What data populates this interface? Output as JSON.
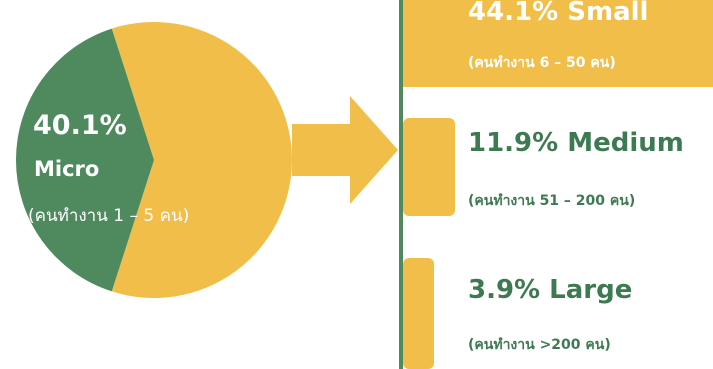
{
  "colors": {
    "micro": "#4f8a5f",
    "segments": "#f2be4a",
    "divider": "#4f8a5f",
    "text_light": "#ffffff",
    "text_dark": "#3d7a52"
  },
  "icons": {
    "arrow": "right-arrow-icon"
  },
  "chart_data": {
    "type": "pie",
    "title": "",
    "slices": [
      {
        "name": "Micro",
        "value": 40.1,
        "label": "40.1%",
        "sub": "(คนทำงาน 1 – 5 คน)"
      },
      {
        "name": "Small / Medium / Large",
        "value": 59.9
      }
    ],
    "breakdown": [
      {
        "pct": "44.1%",
        "name": "Small",
        "value": 44.1,
        "sub": "(คนทำงาน 6 – 50 คน)"
      },
      {
        "pct": "11.9%",
        "name": "Medium",
        "value": 11.9,
        "sub": "(คนทำงาน 51 – 200 คน)"
      },
      {
        "pct": "3.9%",
        "name": "Large",
        "value": 3.9,
        "sub": "(คนทำงาน >200 คน)"
      }
    ]
  },
  "labels": {
    "micro_pct": "40.1%",
    "micro_name": "Micro",
    "micro_sub": "(คนทำงาน 1 – 5 คน)",
    "small_title": "44.1% Small",
    "small_sub": "(คนทำงาน 6 – 50 คน)",
    "medium_title": "11.9% Medium",
    "medium_sub": "(คนทำงาน 51 – 200 คน)",
    "large_title": "3.9% Large",
    "large_sub": "(คนทำงาน >200 คน)"
  }
}
